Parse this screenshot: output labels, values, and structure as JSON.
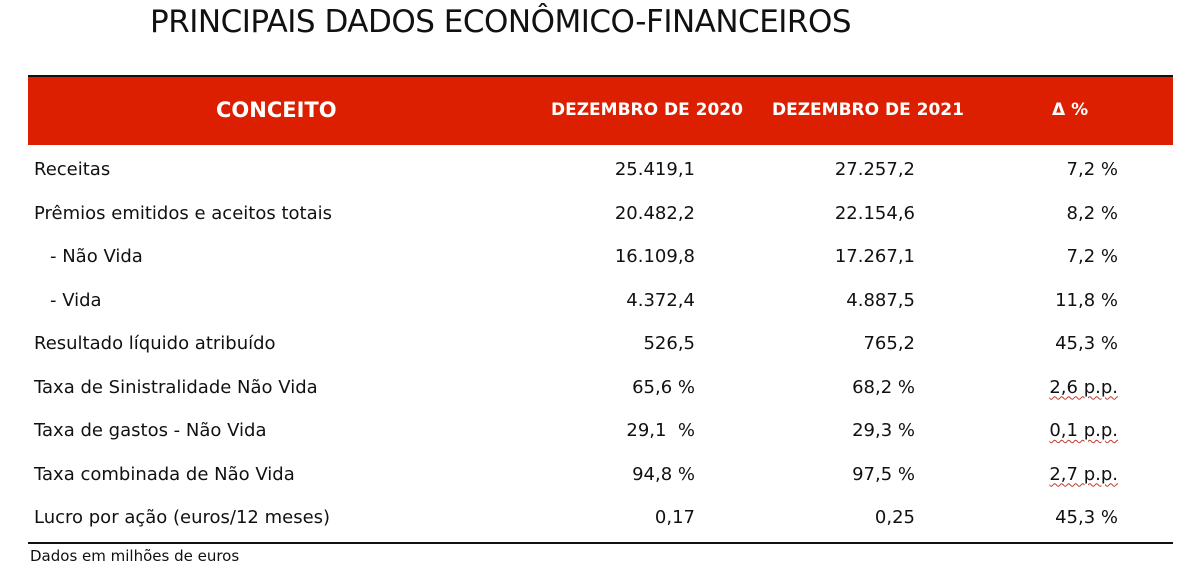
{
  "title": "PRINCIPAIS DADOS ECONÔMICO-FINANCEIROS",
  "header": {
    "concept": "CONCEITO",
    "col_2020": "DEZEMBRO DE 2020",
    "col_2021": "DEZEMBRO DE 2021",
    "col_delta": "Δ %"
  },
  "accent_color": "#dc1f00",
  "rows": [
    {
      "label": "Receitas",
      "v2020": "25.419,1",
      "v2021": "27.257,2",
      "delta": "7,2 %"
    },
    {
      "label": "Prêmios emitidos e aceitos totais",
      "v2020": "20.482,2",
      "v2021": "22.154,6",
      "delta": "8,2 %"
    },
    {
      "label": "- Não Vida",
      "v2020": "16.109,8",
      "v2021": "17.267,1",
      "delta": "7,2 %"
    },
    {
      "label": "- Vida",
      "v2020": "4.372,4",
      "v2021": "4.887,5",
      "delta": "11,8 %"
    },
    {
      "label": "Resultado líquido atribuído",
      "v2020": "526,5",
      "v2021": "765,2",
      "delta": "45,3 %"
    },
    {
      "label": "Taxa de Sinistralidade Não Vida",
      "v2020": "65,6 %",
      "v2021": "68,2 %",
      "delta": "2,6 p.p."
    },
    {
      "label": "Taxa de gastos - Não Vida",
      "v2020": "29,1  %",
      "v2021": "29,3 %",
      "delta": "0,1 p.p."
    },
    {
      "label": "Taxa combinada de Não Vida",
      "v2020": "94,8 %",
      "v2021": "97,5 %",
      "delta": "2,7 p.p."
    },
    {
      "label": "Lucro por ação (euros/12 meses)",
      "v2020": "0,17",
      "v2021": "0,25",
      "delta": "45,3 %"
    }
  ],
  "footnote": "Dados em milhões de euros"
}
